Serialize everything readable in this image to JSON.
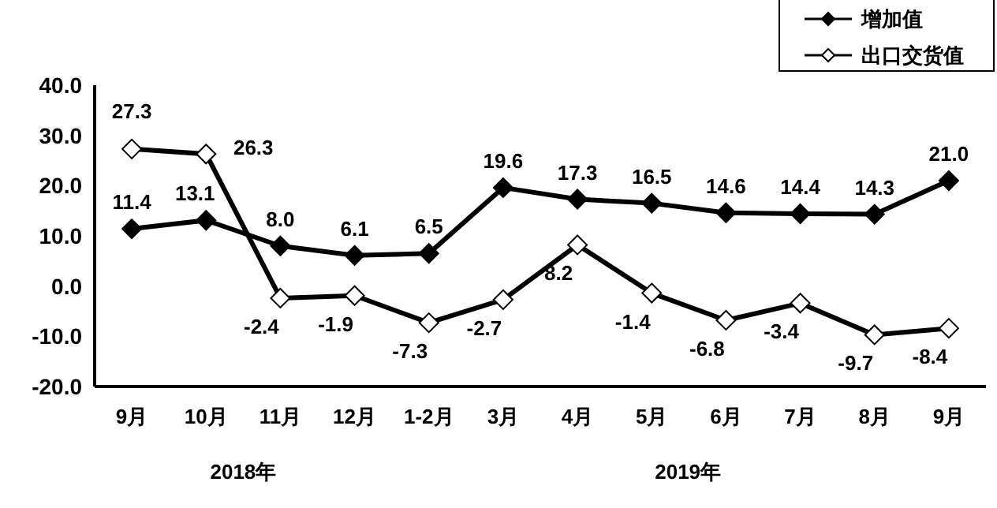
{
  "chart_data": {
    "type": "line",
    "categories": [
      "9月",
      "10月",
      "11月",
      "12月",
      "1-2月",
      "3月",
      "4月",
      "5月",
      "6月",
      "7月",
      "8月",
      "9月"
    ],
    "series": [
      {
        "name": "增加值",
        "color": "#000000",
        "marker": "diamond",
        "values": [
          11.4,
          13.1,
          8.0,
          6.1,
          6.5,
          19.6,
          17.3,
          16.5,
          14.6,
          14.4,
          14.3,
          21.0
        ],
        "value_labels": [
          "11.4",
          "13.1",
          "8.0",
          "6.1",
          "6.5",
          "19.6",
          "17.3",
          "16.5",
          "14.6",
          "14.4",
          "14.3",
          "21.0"
        ]
      },
      {
        "name": "出口交货值",
        "color": "#000000",
        "marker": "diamond",
        "values": [
          27.3,
          26.3,
          -2.4,
          -1.9,
          -7.3,
          -2.7,
          8.2,
          -1.4,
          -6.8,
          -3.4,
          -9.7,
          -8.4
        ],
        "value_labels": [
          "27.3",
          "26.3",
          "-2.4",
          "-1.9",
          "-7.3",
          "-2.7",
          "8.2",
          "-1.4",
          "-6.8",
          "-3.4",
          "-9.7",
          "-8.4"
        ]
      }
    ],
    "ylim": [
      -20,
      40
    ],
    "yticks": [
      {
        "value": 40,
        "label": "40.0"
      },
      {
        "value": 30,
        "label": "30.0"
      },
      {
        "value": 20,
        "label": "20.0"
      },
      {
        "value": 10,
        "label": "10.0"
      },
      {
        "value": 0,
        "label": "0.0"
      },
      {
        "value": -10,
        "label": "-10.0"
      },
      {
        "value": -20,
        "label": "-20.0"
      }
    ],
    "grid": false,
    "legend": "top right",
    "line_style": "solid",
    "annotations": [
      "2018年",
      "2019年"
    ]
  }
}
